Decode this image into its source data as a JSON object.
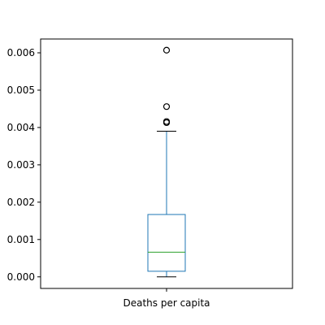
{
  "chart_data": {
    "type": "box",
    "categories": [
      "Deaths per capita"
    ],
    "series": [
      {
        "q1": 0.00015,
        "median": 0.00066,
        "q3": 0.00167,
        "whisker_low": 0.0,
        "whisker_high": 0.0039,
        "outliers": [
          0.00413,
          0.00416,
          0.00456,
          0.00607
        ]
      }
    ],
    "ylim": [
      -0.00031,
      0.00637
    ],
    "yticks": [
      0.0,
      0.001,
      0.002,
      0.003,
      0.004,
      0.005,
      0.006
    ],
    "ytick_labels": [
      "0.000",
      "0.001",
      "0.002",
      "0.003",
      "0.004",
      "0.005",
      "0.006"
    ],
    "colors": {
      "box": "#1f77b4",
      "median": "#2ca02c",
      "whisker_cap": "#000000",
      "outlier": "#000000",
      "axes": "#000000"
    },
    "grid": false
  }
}
